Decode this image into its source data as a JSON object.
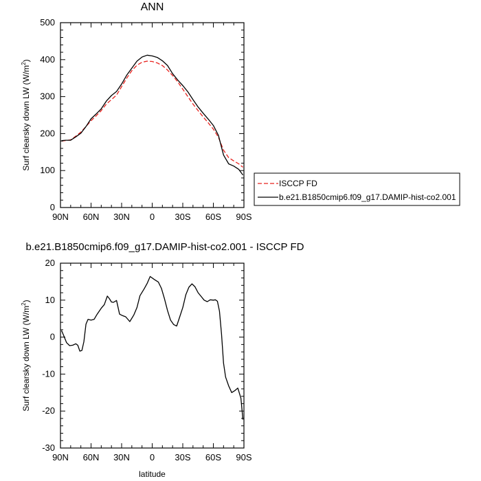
{
  "chart_data": [
    {
      "type": "line",
      "title": "ANN",
      "xlabel": "",
      "ylabel": "Surf clearsky down LW (W/m²)",
      "ylabel_main": "Surf clearsky down LW (W/m",
      "ylabel_sup": "2",
      "ylabel_end": ")",
      "xlim": [
        90,
        -90
      ],
      "ylim": [
        0,
        500
      ],
      "x_ticks": [
        90,
        60,
        30,
        0,
        -30,
        -60,
        -90
      ],
      "x_tick_labels": [
        "90N",
        "60N",
        "30N",
        "0",
        "30S",
        "60S",
        "90S"
      ],
      "y_ticks": [
        0,
        100,
        200,
        300,
        400,
        500
      ],
      "y_tick_labels": [
        "0",
        "100",
        "200",
        "300",
        "400",
        "500"
      ],
      "grid": false,
      "legend_position": "right",
      "series": [
        {
          "name": "ISCCP FD",
          "color": "#e8201c",
          "style": "dashed",
          "x": [
            89,
            85,
            80,
            75,
            70,
            65,
            60,
            55,
            50,
            45,
            40,
            35,
            30,
            25,
            20,
            15,
            10,
            5,
            0,
            -5,
            -10,
            -15,
            -20,
            -25,
            -30,
            -35,
            -40,
            -45,
            -50,
            -55,
            -60,
            -65,
            -70,
            -75,
            -80,
            -85,
            -89
          ],
          "y": [
            180,
            181,
            183,
            193,
            204,
            219,
            235,
            248,
            262,
            280,
            292,
            304,
            327,
            350,
            370,
            385,
            393,
            396,
            395,
            391,
            384,
            372,
            357,
            340,
            320,
            300,
            280,
            262,
            245,
            229,
            212,
            190,
            155,
            135,
            126,
            118,
            109
          ]
        },
        {
          "name": "b.e21.B1850cmip6.f09_g17.DAMIP-hist-co2.001",
          "color": "#000000",
          "style": "solid",
          "x": [
            89,
            85,
            80,
            75,
            70,
            65,
            60,
            55,
            50,
            45,
            40,
            35,
            30,
            25,
            20,
            15,
            10,
            5,
            0,
            -5,
            -10,
            -15,
            -20,
            -25,
            -30,
            -35,
            -40,
            -45,
            -50,
            -55,
            -60,
            -65,
            -70,
            -75,
            -80,
            -85,
            -89
          ],
          "y": [
            181,
            182,
            182,
            191,
            201,
            219,
            240,
            253,
            267,
            288,
            303,
            314,
            334,
            358,
            377,
            396,
            407,
            412,
            410,
            406,
            397,
            384,
            362,
            345,
            330,
            313,
            292,
            272,
            255,
            239,
            222,
            195,
            142,
            118,
            112,
            103,
            88
          ]
        }
      ]
    },
    {
      "type": "line",
      "title": "b.e21.B1850cmip6.f09_g17.DAMIP-hist-co2.001 - ISCCP FD",
      "xlabel": "latitude",
      "ylabel": "Surf clearsky down LW (W/m²)",
      "ylabel_main": "Surf clearsky down LW (W/m",
      "ylabel_sup": "2",
      "ylabel_end": ")",
      "xlim": [
        90,
        -90
      ],
      "ylim": [
        -30,
        20
      ],
      "x_ticks": [
        90,
        60,
        30,
        0,
        -30,
        -60,
        -90
      ],
      "x_tick_labels": [
        "90N",
        "60N",
        "30N",
        "0",
        "30S",
        "60S",
        "90S"
      ],
      "y_ticks": [
        -30,
        -20,
        -10,
        0,
        10,
        20
      ],
      "y_tick_labels": [
        "-30",
        "-20",
        "-10",
        "0",
        "10",
        "20"
      ],
      "grid": false,
      "series": [
        {
          "color": "#000000",
          "style": "solid",
          "x": [
            89,
            87,
            84,
            81,
            78,
            75,
            73,
            71,
            69,
            67,
            65,
            63,
            60,
            57,
            54,
            50,
            47,
            44,
            42,
            40,
            38,
            35,
            32,
            29,
            26,
            22,
            18,
            15,
            12,
            8,
            5,
            2,
            -2,
            -6,
            -9,
            -12,
            -15,
            -18,
            -21,
            -24,
            -27,
            -30,
            -33,
            -36,
            -39,
            -42,
            -45,
            -48,
            -51,
            -54,
            -57,
            -60,
            -62,
            -64,
            -66,
            -68,
            -70,
            -72,
            -75,
            -78,
            -81,
            -84,
            -87,
            -89
          ],
          "y": [
            1.8,
            0.5,
            -1.5,
            -2.3,
            -2.2,
            -1.8,
            -2.2,
            -3.8,
            -3.6,
            -1.2,
            3.5,
            4.8,
            4.6,
            4.8,
            6.2,
            7.8,
            8.8,
            11.1,
            10.4,
            9.5,
            9.4,
            9.9,
            6.2,
            5.8,
            5.5,
            4.2,
            6.0,
            8.0,
            11.2,
            13.0,
            14.5,
            16.4,
            15.6,
            14.9,
            13.2,
            10.4,
            7.2,
            4.6,
            3.4,
            3.0,
            5.5,
            8.0,
            11.5,
            13.5,
            14.4,
            13.6,
            12.0,
            11.0,
            10.0,
            9.6,
            10.1,
            10.0,
            10.1,
            9.7,
            7.0,
            0.8,
            -7.0,
            -10.8,
            -13.2,
            -15.0,
            -14.5,
            -13.8,
            -16.5,
            -22.3
          ]
        }
      ]
    }
  ]
}
